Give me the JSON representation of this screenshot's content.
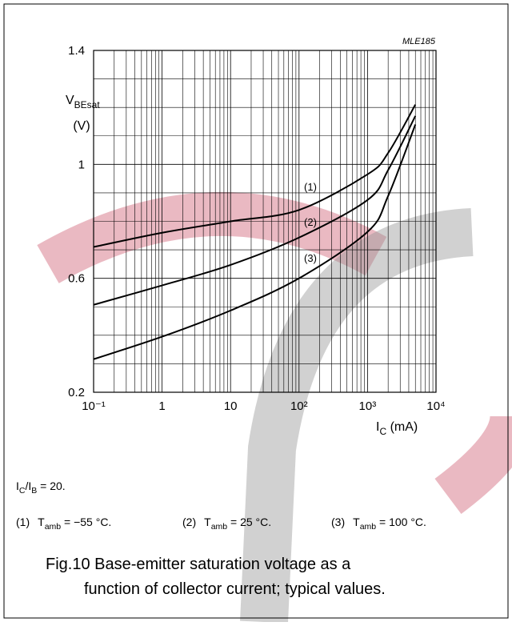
{
  "chart_data": {
    "type": "line",
    "code": "MLE185",
    "y_label": [
      {
        "text": "V"
      },
      {
        "text": "BEsat",
        "sub": true
      }
    ],
    "y_unit": "(V)",
    "x_label": [
      {
        "text": "I"
      },
      {
        "text": "C",
        "sub": true
      },
      {
        "text": " (mA)"
      }
    ],
    "xscale": "log",
    "xlim": [
      0.1,
      10000
    ],
    "xticks": [
      {
        "value": 0.1,
        "label": "10⁻¹"
      },
      1,
      10,
      {
        "value": 100,
        "label": "10²"
      },
      {
        "value": 1000,
        "label": "10³"
      },
      {
        "value": 10000,
        "label": "10⁴"
      }
    ],
    "ylim": [
      0.2,
      1.4
    ],
    "yticks": [
      0.2,
      0.6,
      1,
      1.4
    ],
    "grid": true,
    "x": [
      0.1,
      1,
      10,
      100,
      1000,
      2000,
      5000
    ],
    "series": [
      {
        "name": "(1)",
        "color": "#000000",
        "condition": " = −55 °C.",
        "values": [
          0.71,
          0.76,
          0.8,
          0.84,
          0.965,
          1.04,
          1.21
        ]
      },
      {
        "name": "(2)",
        "color": "#000000",
        "condition": " = 25 °C.",
        "values": [
          0.507,
          0.575,
          0.647,
          0.743,
          0.875,
          0.98,
          1.17
        ]
      },
      {
        "name": "(3)",
        "color": "#000000",
        "condition": " = 100 °C.",
        "values": [
          0.316,
          0.395,
          0.487,
          0.6,
          0.763,
          0.889,
          1.14
        ]
      }
    ],
    "legend_var": [
      {
        "text": "T"
      },
      {
        "text": "amb",
        "sub": true
      }
    ],
    "note": [
      {
        "text": "I"
      },
      {
        "text": "C",
        "sub": true
      },
      {
        "text": "/I"
      },
      {
        "text": "B",
        "sub": true
      },
      {
        "text": " = 20."
      }
    ],
    "caption": [
      "Fig.10  Base-emitter saturation voltage as a",
      "function of collector current; typical values."
    ]
  }
}
